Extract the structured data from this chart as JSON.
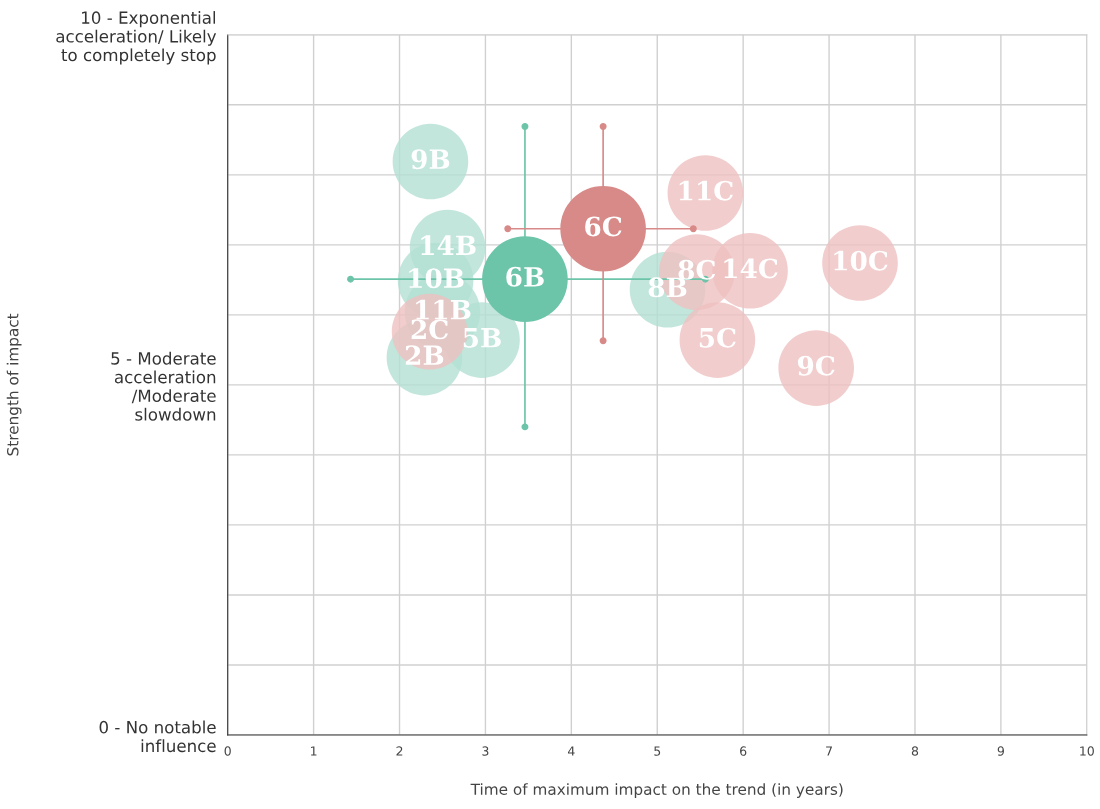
{
  "chart_data": {
    "type": "bubble",
    "xlabel": "Time of maximum impact on the trend (in years)",
    "ylabel": "Strength of impact",
    "xlim": [
      0,
      10
    ],
    "xticks": [
      0,
      1,
      2,
      3,
      4,
      5,
      6,
      7,
      8,
      9,
      10
    ],
    "ylim": [
      0,
      10
    ],
    "yticks": [
      {
        "value": 0,
        "label": "0 - No notable\ninfluence"
      },
      {
        "value": 1,
        "label": null
      },
      {
        "value": 2,
        "label": null
      },
      {
        "value": 3,
        "label": null
      },
      {
        "value": 4,
        "label": null
      },
      {
        "value": 5,
        "label": "5 - Moderate\nacceleration\n/Moderate\nslowdown"
      },
      {
        "value": 6,
        "label": null
      },
      {
        "value": 7,
        "label": null
      },
      {
        "value": 8,
        "label": null
      },
      {
        "value": 9,
        "label": null
      },
      {
        "value": 10,
        "label": "10 - Exponential\nacceleration/ Likely\nto completely stop"
      }
    ],
    "grid": true,
    "legend": false,
    "series": [
      {
        "color": "#6cc4a9",
        "colors": [
          "#b3e0d3",
          "#b3e0d3",
          "#b3e0d3",
          "#b3e0d3",
          "#b3e0d3",
          "#b3e0d3",
          "#b3e0d3",
          "#6cc4a9"
        ],
        "x": [
          2.36,
          2.56,
          2.42,
          2.5,
          2.96,
          2.29,
          5.12,
          3.46
        ],
        "values": [
          8.19,
          6.96,
          6.49,
          6.04,
          5.64,
          5.39,
          6.36,
          6.51
        ],
        "sizes": [
          0.78,
          0.78,
          0.78,
          0.78,
          0.78,
          0.78,
          0.78,
          1
        ],
        "errors": [
          null,
          null,
          null,
          null,
          null,
          null,
          null,
          [
            4.4,
            8.69
          ]
        ],
        "xerrors": [
          null,
          null,
          null,
          null,
          null,
          null,
          null,
          [
            1.43,
            5.56
          ]
        ]
      },
      {
        "color": "#d78a88",
        "colors": [
          "#efc1c0",
          "#efc1c0",
          "#efc1c0",
          "#efc1c0",
          "#efc1c0",
          "#efc1c0",
          "#efc1c0",
          "#d78a88"
        ],
        "x": [
          2.35,
          5.56,
          5.46,
          6.08,
          7.36,
          5.7,
          6.85,
          4.37
        ],
        "values": [
          5.76,
          7.74,
          6.61,
          6.63,
          6.74,
          5.64,
          5.24,
          7.23
        ],
        "sizes": [
          0.78,
          0.78,
          0.78,
          0.78,
          0.78,
          0.78,
          0.78,
          1
        ],
        "errors": [
          null,
          null,
          null,
          null,
          null,
          null,
          null,
          [
            5.63,
            8.69
          ]
        ],
        "xerrors": [
          null,
          null,
          null,
          null,
          null,
          null,
          null,
          [
            3.26,
            5.42
          ]
        ]
      }
    ],
    "annotations": [
      {
        "text": "9B",
        "x": 2.36,
        "y": 8.19
      },
      {
        "text": "14B",
        "x": 2.56,
        "y": 6.96
      },
      {
        "text": "10B",
        "x": 2.42,
        "y": 6.49
      },
      {
        "text": "11B",
        "x": 2.5,
        "y": 6.04
      },
      {
        "text": "5B",
        "x": 2.96,
        "y": 5.64
      },
      {
        "text": "2B",
        "x": 2.29,
        "y": 5.39
      },
      {
        "text": "8B",
        "x": 5.12,
        "y": 6.36
      },
      {
        "text": "6B",
        "x": 3.46,
        "y": 6.51
      },
      {
        "text": "2C",
        "x": 2.35,
        "y": 5.76
      },
      {
        "text": "11C",
        "x": 5.56,
        "y": 7.74
      },
      {
        "text": "8C",
        "x": 5.46,
        "y": 6.61
      },
      {
        "text": "14C",
        "x": 6.08,
        "y": 6.63
      },
      {
        "text": "10C",
        "x": 7.36,
        "y": 6.74
      },
      {
        "text": "5C",
        "x": 5.7,
        "y": 5.64
      },
      {
        "text": "9C",
        "x": 6.85,
        "y": 5.24
      },
      {
        "text": "6C",
        "x": 4.37,
        "y": 7.23
      }
    ]
  }
}
